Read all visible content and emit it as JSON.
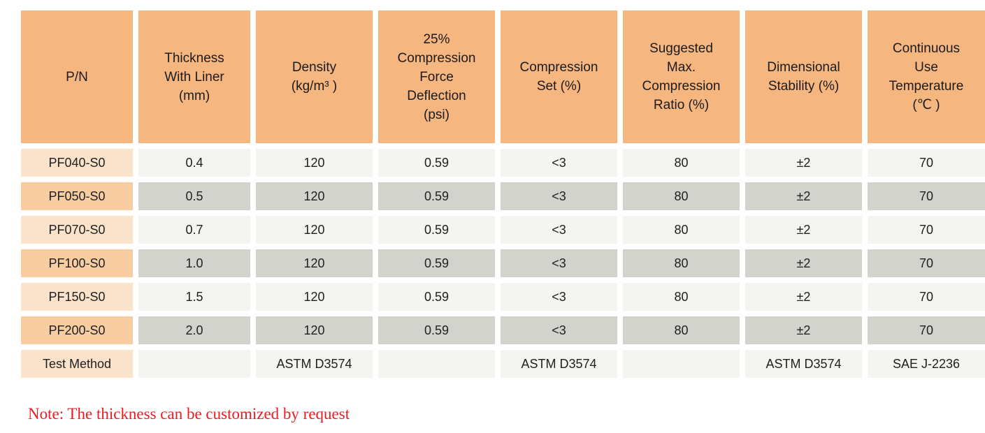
{
  "colors": {
    "page_bg": "#ffffff",
    "header_bg": "#f6b67f",
    "header_text": "#1b1b1b",
    "pn_light_bg": "#fbe3cb",
    "pn_dark_bg": "#f8cda0",
    "cell_light_bg": "#f4f4f0",
    "cell_dark_bg": "#d3d3cd",
    "text": "#1f1f1f",
    "note_red": "#ec1b22"
  },
  "table": {
    "columns": [
      {
        "id": "pn",
        "label": "P/N"
      },
      {
        "id": "thickness-with-liner",
        "label": "Thickness\nWith Liner\n(mm)"
      },
      {
        "id": "density",
        "label": "Density\n(kg/m³ )"
      },
      {
        "id": "compression-force-deflection",
        "label": "25%\nCompression\nForce\nDeflection\n(psi)"
      },
      {
        "id": "compression-set",
        "label": "Compression\nSet (%)"
      },
      {
        "id": "suggested-max-compression-ratio",
        "label": "Suggested\nMax.\nCompression\nRatio (%)"
      },
      {
        "id": "dimensional-stability",
        "label": "Dimensional\nStability (%)"
      },
      {
        "id": "continuous-use-temperature",
        "label": "Continuous\nUse\nTemperature\n(℃ )"
      }
    ],
    "rows": [
      {
        "pn": "PF040-S0",
        "shade": "light",
        "values": [
          "0.4",
          "120",
          "0.59",
          "<3",
          "80",
          "±2",
          "70"
        ]
      },
      {
        "pn": "PF050-S0",
        "shade": "dark",
        "values": [
          "0.5",
          "120",
          "0.59",
          "<3",
          "80",
          "±2",
          "70"
        ]
      },
      {
        "pn": "PF070-S0",
        "shade": "light",
        "values": [
          "0.7",
          "120",
          "0.59",
          "<3",
          "80",
          "±2",
          "70"
        ]
      },
      {
        "pn": "PF100-S0",
        "shade": "dark",
        "values": [
          "1.0",
          "120",
          "0.59",
          "<3",
          "80",
          "±2",
          "70"
        ]
      },
      {
        "pn": "PF150-S0",
        "shade": "light",
        "values": [
          "1.5",
          "120",
          "0.59",
          "<3",
          "80",
          "±2",
          "70"
        ]
      },
      {
        "pn": "PF200-S0",
        "shade": "dark",
        "values": [
          "2.0",
          "120",
          "0.59",
          "<3",
          "80",
          "±2",
          "70"
        ]
      },
      {
        "pn": "Test Method",
        "shade": "light",
        "values": [
          "",
          "ASTM D3574",
          "",
          "ASTM D3574",
          "",
          "ASTM D3574",
          "SAE J-2236"
        ]
      }
    ]
  },
  "note": {
    "text": "Note: The thickness can be customized by request"
  }
}
